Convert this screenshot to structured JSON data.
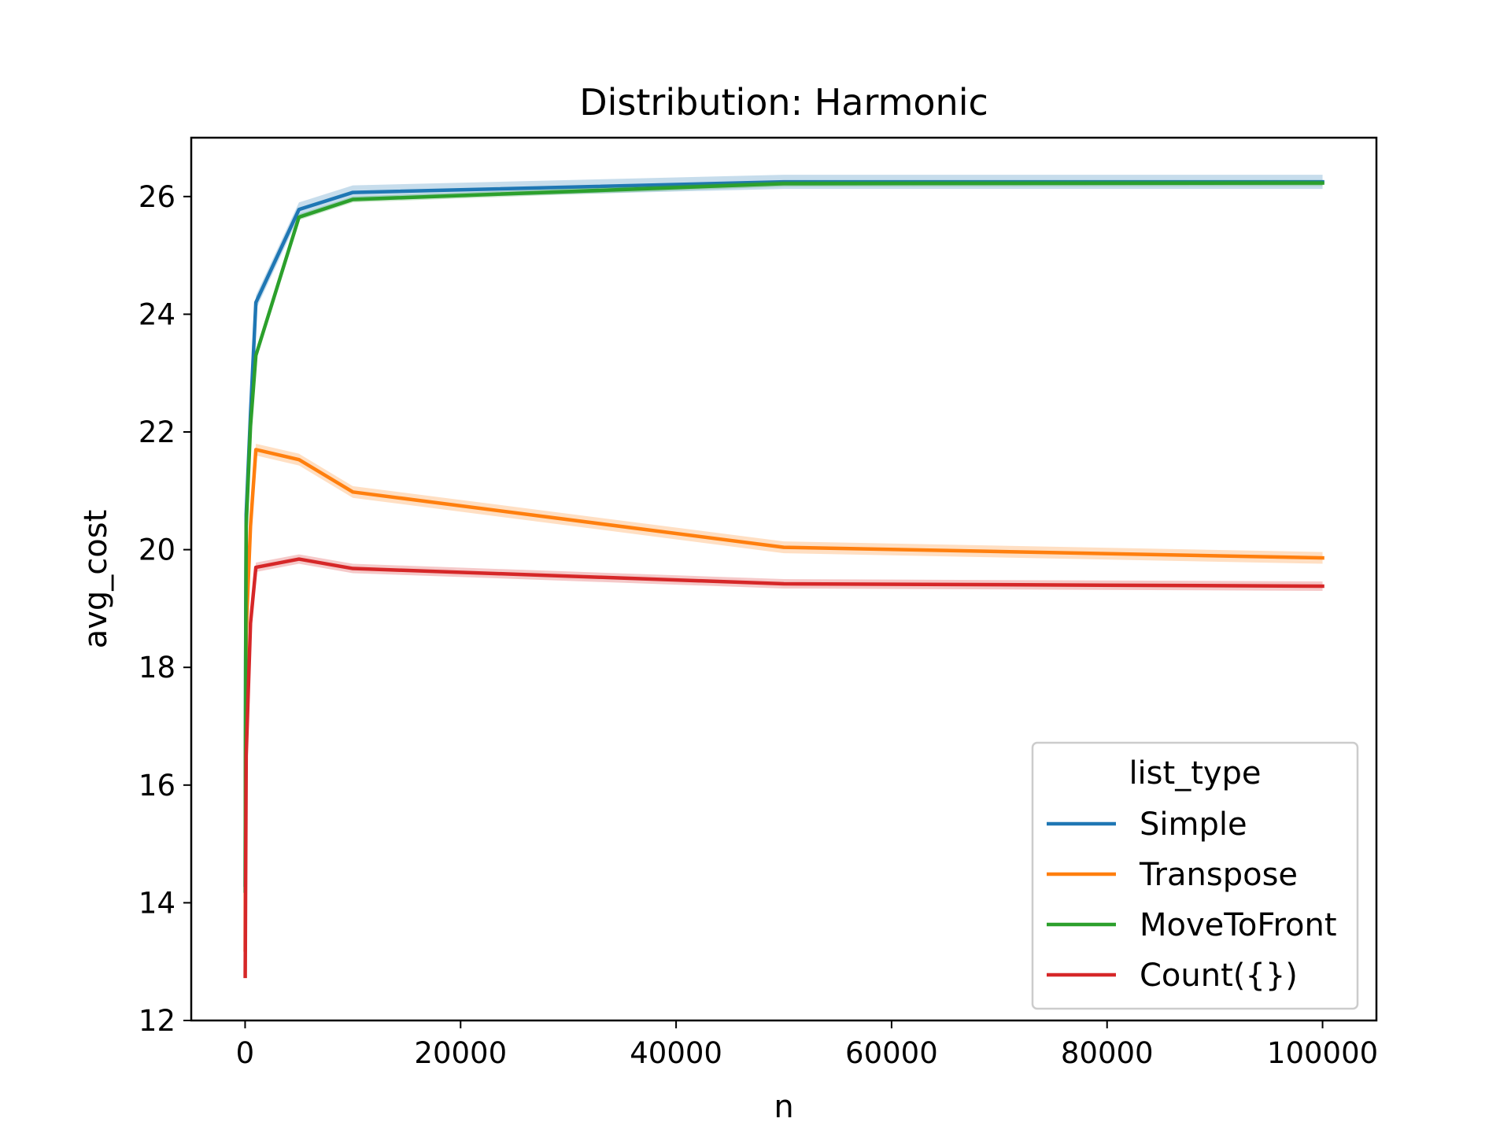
{
  "chart_data": {
    "type": "line",
    "title": "Distribution: Harmonic",
    "xlabel": "n",
    "ylabel": "avg_cost",
    "xlim": [
      -5000,
      105000
    ],
    "ylim": [
      12,
      27
    ],
    "xticks": [
      0,
      20000,
      40000,
      60000,
      80000,
      100000
    ],
    "xtick_labels": [
      "0",
      "20000",
      "40000",
      "60000",
      "80000",
      "100000"
    ],
    "yticks": [
      12,
      14,
      16,
      18,
      20,
      22,
      24,
      26
    ],
    "ytick_labels": [
      "12",
      "14",
      "16",
      "18",
      "20",
      "22",
      "24",
      "26"
    ],
    "grid": false,
    "legend": {
      "title": "list_type",
      "placement": "lower right"
    },
    "series": [
      {
        "name": "Simple",
        "color": "#1f77b4",
        "x": [
          10,
          50,
          100,
          500,
          1000,
          5000,
          10000,
          50000,
          100000
        ],
        "y": [
          14.3,
          18.2,
          20.6,
          22.3,
          24.2,
          25.78,
          26.07,
          26.25,
          26.25
        ],
        "band": 0.12
      },
      {
        "name": "Transpose",
        "color": "#ff7f0e",
        "x": [
          10,
          50,
          100,
          500,
          1000,
          5000,
          10000,
          50000,
          100000
        ],
        "y": [
          13.2,
          16.8,
          18.6,
          20.4,
          21.7,
          21.53,
          20.98,
          20.04,
          19.86
        ],
        "band": 0.1
      },
      {
        "name": "MoveToFront",
        "color": "#2ca02c",
        "x": [
          10,
          50,
          100,
          500,
          1000,
          5000,
          10000,
          50000,
          100000
        ],
        "y": [
          14.2,
          18.0,
          20.4,
          22.1,
          23.3,
          25.65,
          25.95,
          26.22,
          26.23
        ],
        "band": 0.05
      },
      {
        "name": "Count({})",
        "color": "#d62728",
        "x": [
          10,
          50,
          100,
          500,
          1000,
          5000,
          10000,
          50000,
          100000
        ],
        "y": [
          12.75,
          14.5,
          16.5,
          18.75,
          19.7,
          19.84,
          19.68,
          19.42,
          19.38
        ],
        "band": 0.08
      }
    ]
  }
}
